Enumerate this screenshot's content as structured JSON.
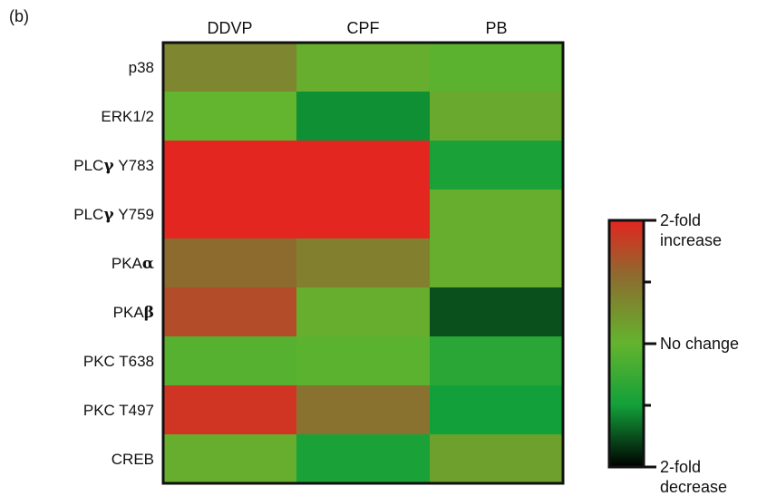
{
  "panel_label": "(b)",
  "chart_data": {
    "type": "heatmap",
    "title": "",
    "columns": [
      "DDVP",
      "CPF",
      "PB"
    ],
    "rows": [
      {
        "pre": "p38",
        "greek": "",
        "post": ""
      },
      {
        "pre": "ERK1/2",
        "greek": "",
        "post": ""
      },
      {
        "pre": "PLC",
        "greek": "γ",
        "post": " Y783"
      },
      {
        "pre": "PLC",
        "greek": "γ",
        "post": " Y759"
      },
      {
        "pre": "PKA",
        "greek": "α",
        "post": ""
      },
      {
        "pre": "PKA",
        "greek": "β",
        "post": ""
      },
      {
        "pre": "PKC T638",
        "greek": "",
        "post": ""
      },
      {
        "pre": "PKC T497",
        "greek": "",
        "post": ""
      },
      {
        "pre": "CREB",
        "greek": "",
        "post": ""
      }
    ],
    "value_scale": "fold change; -1 = 2-fold decrease, 0 = no change, 1 = 2-fold increase",
    "values": [
      [
        0.35,
        0.05,
        -0.05
      ],
      [
        0.0,
        -0.55,
        0.08
      ],
      [
        1.0,
        1.0,
        -0.45
      ],
      [
        1.0,
        1.0,
        0.05
      ],
      [
        0.55,
        0.4,
        0.05
      ],
      [
        0.75,
        0.05,
        -0.75
      ],
      [
        -0.08,
        -0.05,
        -0.35
      ],
      [
        0.9,
        0.5,
        -0.5
      ],
      [
        0.05,
        -0.45,
        0.15
      ]
    ],
    "colorbar": {
      "top_label_lines": [
        "2-fold",
        "increase"
      ],
      "mid_label": "No change",
      "bottom_label_lines": [
        "2-fold",
        "decrease"
      ],
      "stops": [
        {
          "v": 1.0,
          "color": "#e3261f"
        },
        {
          "v": 0.55,
          "color": "#8d6b2f"
        },
        {
          "v": 0.0,
          "color": "#63b42e"
        },
        {
          "v": -0.5,
          "color": "#12a03a"
        },
        {
          "v": -1.0,
          "color": "#000000"
        }
      ]
    }
  }
}
